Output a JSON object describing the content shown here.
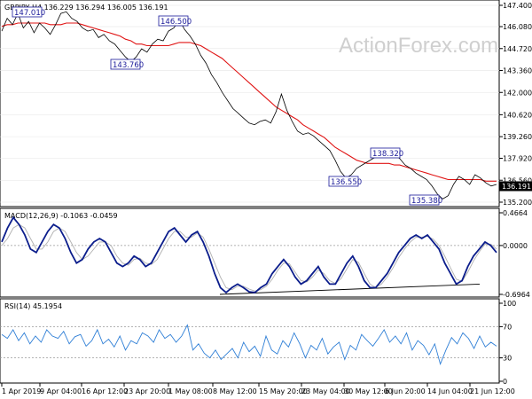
{
  "chart_data": [
    {
      "type": "line",
      "panel": "price",
      "title": "GBPJPY,H4  136.229 136.294 136.005 136.191",
      "watermark": "ActionForex.com",
      "y_ticks": [
        "147.400",
        "146.080",
        "144.720",
        "143.360",
        "142.000",
        "140.620",
        "139.260",
        "137.920",
        "136.560",
        "135.200"
      ],
      "ylim": [
        135.2,
        147.4
      ],
      "last_price": "136.191",
      "grid": true,
      "x_ticks": [
        "1 Apr 2019",
        "9 Apr 04:00",
        "16 Apr 12:00",
        "23 Apr 20:00",
        "1 May 08:00",
        "8 May 12:00",
        "15 May 20:00",
        "23 May 04:00",
        "30 May 12:00",
        "6 Jun 20:00",
        "14 Jun 04:00",
        "21 Jun 12:00"
      ],
      "annotations": [
        {
          "label": "147.010",
          "value": 147.01
        },
        {
          "label": "146.500",
          "value": 146.5
        },
        {
          "label": "143.760",
          "value": 143.76
        },
        {
          "label": "138.320",
          "value": 138.32
        },
        {
          "label": "136.550",
          "value": 136.55
        },
        {
          "label": "135.380",
          "value": 135.38
        }
      ],
      "series": [
        {
          "values": [
            145.8,
            146.6,
            146.2,
            146.9,
            146.0,
            146.4,
            145.7,
            146.3,
            146.0,
            145.6,
            146.2,
            146.9,
            147.0,
            146.6,
            146.4,
            146.0,
            145.8,
            145.9,
            145.4,
            145.6,
            145.2,
            145.0,
            144.6,
            144.2,
            143.9,
            144.2,
            144.7,
            144.5,
            145.0,
            145.3,
            145.2,
            145.8,
            146.0,
            146.5,
            145.9,
            145.5,
            145.0,
            144.3,
            143.8,
            143.1,
            142.6,
            142.0,
            141.5,
            141.0,
            140.7,
            140.4,
            140.1,
            140.0,
            140.2,
            140.3,
            140.1,
            140.8,
            141.9,
            140.9,
            140.2,
            139.6,
            139.4,
            139.5,
            139.3,
            139.0,
            138.7,
            138.4,
            137.8,
            137.1,
            136.7,
            136.9,
            137.3,
            137.5,
            137.7,
            137.9,
            138.1,
            138.3,
            138.0,
            138.2,
            137.9,
            137.5,
            137.3,
            137.0,
            136.8,
            136.6,
            136.2,
            135.7,
            135.4,
            135.6,
            136.3,
            136.8,
            136.6,
            136.3,
            136.9,
            136.7,
            136.4,
            136.2,
            136.3
          ]
        },
        {
          "values": [
            146.1,
            146.2,
            146.2,
            146.3,
            146.3,
            146.3,
            146.3,
            146.3,
            146.3,
            146.2,
            146.2,
            146.2,
            146.3,
            146.3,
            146.3,
            146.2,
            146.1,
            146.0,
            145.9,
            145.8,
            145.7,
            145.6,
            145.5,
            145.3,
            145.2,
            145.0,
            145.0,
            144.9,
            144.9,
            144.9,
            144.9,
            144.9,
            145.0,
            145.1,
            145.1,
            145.1,
            145.0,
            144.9,
            144.7,
            144.5,
            144.3,
            144.1,
            143.8,
            143.5,
            143.2,
            142.9,
            142.6,
            142.3,
            142.0,
            141.7,
            141.4,
            141.1,
            140.9,
            140.7,
            140.5,
            140.3,
            140.0,
            139.8,
            139.6,
            139.4,
            139.2,
            138.9,
            138.6,
            138.4,
            138.2,
            138.0,
            137.8,
            137.7,
            137.6,
            137.6,
            137.6,
            137.6,
            137.6,
            137.5,
            137.5,
            137.4,
            137.3,
            137.2,
            137.1,
            137.0,
            136.9,
            136.8,
            136.7,
            136.6,
            136.6,
            136.6,
            136.6,
            136.6,
            136.6,
            136.6,
            136.5,
            136.5,
            136.5
          ]
        }
      ]
    },
    {
      "type": "line",
      "panel": "macd",
      "title": "MACD(12,26,9) -0.1063 -0.0459",
      "y_ticks": [
        "0.4664",
        "0.0000",
        "-0.6964"
      ],
      "ylim": [
        -0.6964,
        0.4664
      ],
      "zero_line": 0.0,
      "trendline": [
        -0.6964,
        -0.55
      ],
      "series": [
        {
          "values": [
            0.05,
            0.25,
            0.4,
            0.3,
            0.15,
            -0.05,
            -0.1,
            0.05,
            0.2,
            0.3,
            0.25,
            0.1,
            -0.1,
            -0.25,
            -0.2,
            -0.05,
            0.05,
            0.1,
            0.05,
            -0.1,
            -0.25,
            -0.3,
            -0.25,
            -0.15,
            -0.2,
            -0.3,
            -0.25,
            -0.1,
            0.05,
            0.2,
            0.25,
            0.15,
            0.05,
            0.15,
            0.2,
            0.05,
            -0.15,
            -0.4,
            -0.6,
            -0.67,
            -0.6,
            -0.55,
            -0.6,
            -0.66,
            -0.67,
            -0.6,
            -0.55,
            -0.4,
            -0.3,
            -0.2,
            -0.3,
            -0.45,
            -0.55,
            -0.5,
            -0.4,
            -0.3,
            -0.45,
            -0.55,
            -0.55,
            -0.4,
            -0.25,
            -0.15,
            -0.3,
            -0.5,
            -0.6,
            -0.6,
            -0.5,
            -0.4,
            -0.25,
            -0.1,
            0.0,
            0.1,
            0.15,
            0.1,
            0.15,
            0.05,
            -0.05,
            -0.25,
            -0.4,
            -0.55,
            -0.5,
            -0.3,
            -0.15,
            -0.05,
            0.05,
            0.0,
            -0.1
          ]
        },
        {
          "values": [
            0.0,
            0.1,
            0.25,
            0.3,
            0.25,
            0.1,
            -0.05,
            -0.05,
            0.05,
            0.2,
            0.25,
            0.2,
            0.05,
            -0.1,
            -0.2,
            -0.15,
            -0.05,
            0.05,
            0.05,
            0.0,
            -0.15,
            -0.25,
            -0.28,
            -0.2,
            -0.18,
            -0.25,
            -0.27,
            -0.2,
            -0.05,
            0.1,
            0.2,
            0.2,
            0.12,
            0.12,
            0.18,
            0.12,
            -0.05,
            -0.25,
            -0.45,
            -0.6,
            -0.63,
            -0.58,
            -0.58,
            -0.62,
            -0.65,
            -0.63,
            -0.58,
            -0.48,
            -0.35,
            -0.25,
            -0.26,
            -0.38,
            -0.5,
            -0.52,
            -0.45,
            -0.35,
            -0.4,
            -0.5,
            -0.54,
            -0.47,
            -0.33,
            -0.2,
            -0.24,
            -0.4,
            -0.55,
            -0.6,
            -0.55,
            -0.45,
            -0.32,
            -0.17,
            -0.05,
            0.05,
            0.12,
            0.12,
            0.13,
            0.09,
            0.0,
            -0.15,
            -0.32,
            -0.48,
            -0.51,
            -0.38,
            -0.22,
            -0.09,
            0.02,
            0.02,
            -0.05
          ]
        }
      ]
    },
    {
      "type": "line",
      "panel": "rsi",
      "title": "RSI(14) 45.1954",
      "y_ticks": [
        "100",
        "70",
        "30",
        "0"
      ],
      "ylim": [
        0,
        100
      ],
      "levels": [
        70,
        30
      ],
      "series": [
        {
          "values": [
            60,
            55,
            66,
            52,
            62,
            48,
            58,
            50,
            66,
            58,
            55,
            64,
            48,
            57,
            60,
            45,
            52,
            66,
            48,
            54,
            44,
            58,
            40,
            52,
            48,
            62,
            58,
            50,
            66,
            55,
            60,
            50,
            58,
            72,
            40,
            48,
            36,
            30,
            40,
            28,
            35,
            42,
            30,
            50,
            38,
            45,
            32,
            58,
            40,
            35,
            52,
            44,
            62,
            48,
            30,
            46,
            40,
            55,
            35,
            44,
            50,
            28,
            46,
            40,
            60,
            52,
            45,
            55,
            66,
            50,
            58,
            48,
            62,
            40,
            52,
            46,
            34,
            48,
            22,
            40,
            56,
            48,
            62,
            55,
            42,
            58,
            44,
            50,
            45
          ]
        }
      ]
    }
  ]
}
